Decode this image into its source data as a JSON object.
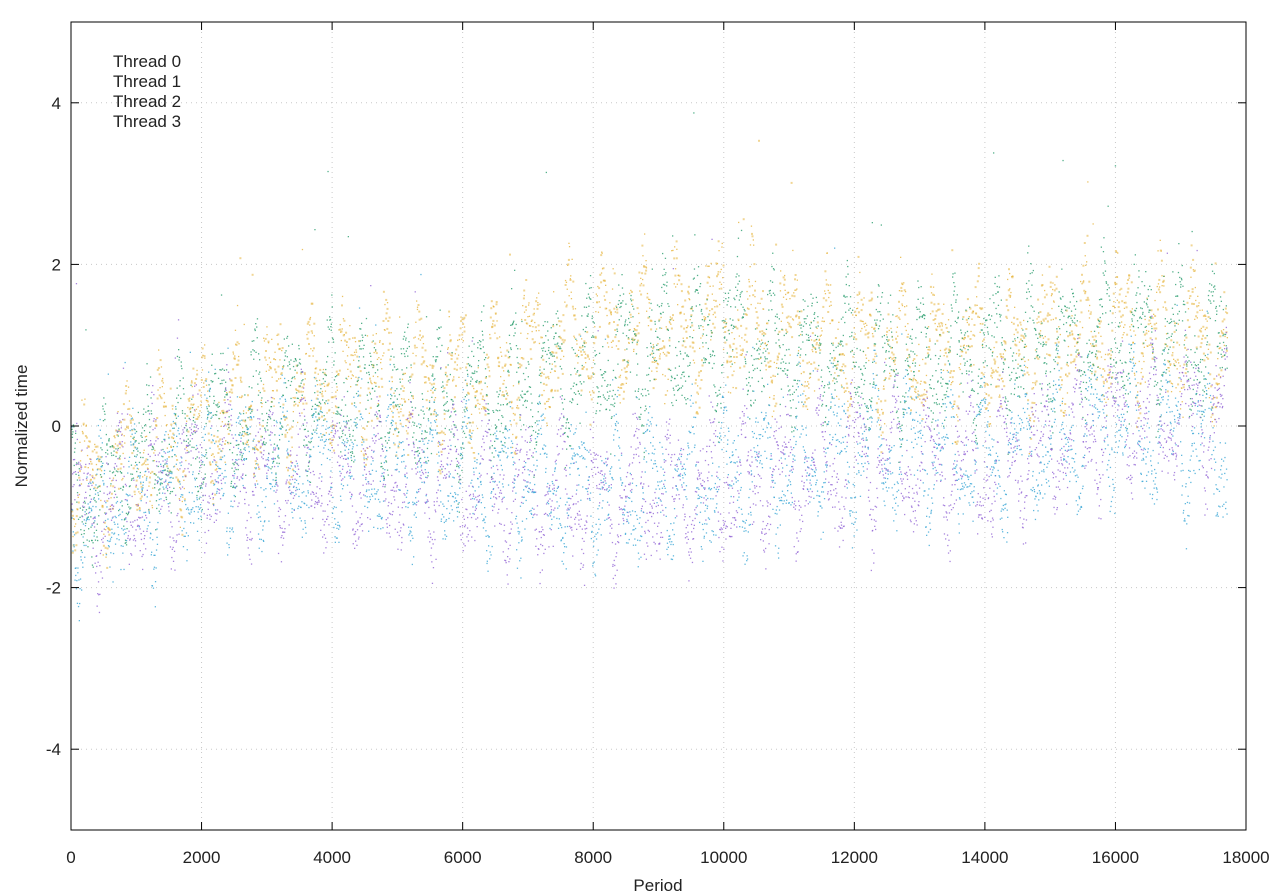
{
  "chart_data": {
    "type": "scatter",
    "title": "",
    "xlabel": "Period",
    "ylabel": "Normalized time",
    "xlim": [
      0,
      18000
    ],
    "ylim": [
      -5,
      5
    ],
    "x_ticks": [
      0,
      2000,
      4000,
      6000,
      8000,
      10000,
      12000,
      14000,
      16000,
      18000
    ],
    "y_ticks": [
      -4,
      -2,
      0,
      2,
      4
    ],
    "x_tick_labels": [
      "0",
      "2000",
      "4000",
      "6000",
      "8000",
      "10000",
      "12000",
      "14000",
      "16000",
      "18000"
    ],
    "y_tick_labels": [
      "-4",
      "-2",
      "0",
      "2",
      "4"
    ],
    "grid": true,
    "legend_position": "top-left",
    "x_max_data": 17700,
    "series": [
      {
        "name": "Thread 0",
        "color": "#9467d6",
        "trend": [
          [
            0,
            -1.1
          ],
          [
            2000,
            -0.5
          ],
          [
            4000,
            -0.6
          ],
          [
            6000,
            -0.7
          ],
          [
            8000,
            -0.9
          ],
          [
            10000,
            -0.7
          ],
          [
            12000,
            -0.4
          ],
          [
            14000,
            -0.5
          ],
          [
            16000,
            0.1
          ],
          [
            17700,
            0.2
          ]
        ]
      },
      {
        "name": "Thread 1",
        "color": "#2a9e6e",
        "trend": [
          [
            0,
            -0.9
          ],
          [
            2000,
            0.0
          ],
          [
            4000,
            0.4
          ],
          [
            6000,
            0.3
          ],
          [
            8000,
            0.8
          ],
          [
            10000,
            1.1
          ],
          [
            12000,
            0.8
          ],
          [
            14000,
            0.9
          ],
          [
            16000,
            1.1
          ],
          [
            17700,
            1.0
          ]
        ]
      },
      {
        "name": "Thread 2",
        "color": "#3aa6d6",
        "trend": [
          [
            0,
            -1.2
          ],
          [
            2000,
            -0.6
          ],
          [
            4000,
            -0.4
          ],
          [
            6000,
            -0.6
          ],
          [
            8000,
            -0.8
          ],
          [
            10000,
            -0.6
          ],
          [
            12000,
            -0.3
          ],
          [
            14000,
            -0.4
          ],
          [
            16000,
            0.0
          ],
          [
            17700,
            -0.3
          ]
        ]
      },
      {
        "name": "Thread 3",
        "color": "#e6b43c",
        "trend": [
          [
            0,
            -0.8
          ],
          [
            2000,
            0.1
          ],
          [
            4000,
            0.6
          ],
          [
            6000,
            0.5
          ],
          [
            8000,
            1.2
          ],
          [
            10000,
            1.3
          ],
          [
            12000,
            1.0
          ],
          [
            14000,
            0.9
          ],
          [
            16000,
            1.2
          ],
          [
            17700,
            1.0
          ]
        ]
      }
    ]
  }
}
